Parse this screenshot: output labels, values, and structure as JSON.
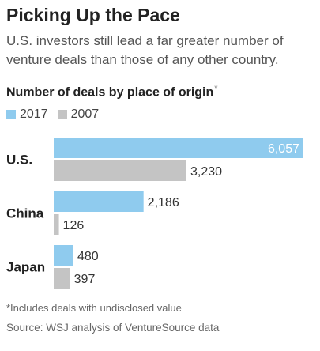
{
  "header": {
    "title": "Picking Up the Pace",
    "subtitle": "U.S. investors still lead a far greater number of venture deals than those of any other country.",
    "chart_title": "Number of deals by place of origin",
    "chart_title_mark": "*"
  },
  "colors": {
    "series_2017": "#8fcbee",
    "series_2007": "#c4c4c4",
    "text": "#222222",
    "muted": "#666666"
  },
  "chart_data": {
    "type": "bar",
    "orientation": "horizontal",
    "title": "Number of deals by place of origin*",
    "categories": [
      "U.S.",
      "China",
      "Japan"
    ],
    "series": [
      {
        "name": "2017",
        "values": [
          6057,
          2186,
          480
        ],
        "labels": [
          "6,057",
          "2,186",
          "480"
        ]
      },
      {
        "name": "2007",
        "values": [
          3230,
          126,
          397
        ],
        "labels": [
          "3,230",
          "126",
          "397"
        ]
      }
    ],
    "xlim": [
      0,
      6057
    ],
    "grid": false,
    "legend": "top-left",
    "xlabel": "",
    "ylabel": ""
  },
  "footer": {
    "note": "*Includes deals with undisclosed value",
    "source": "Source: WSJ analysis of VentureSource data"
  }
}
